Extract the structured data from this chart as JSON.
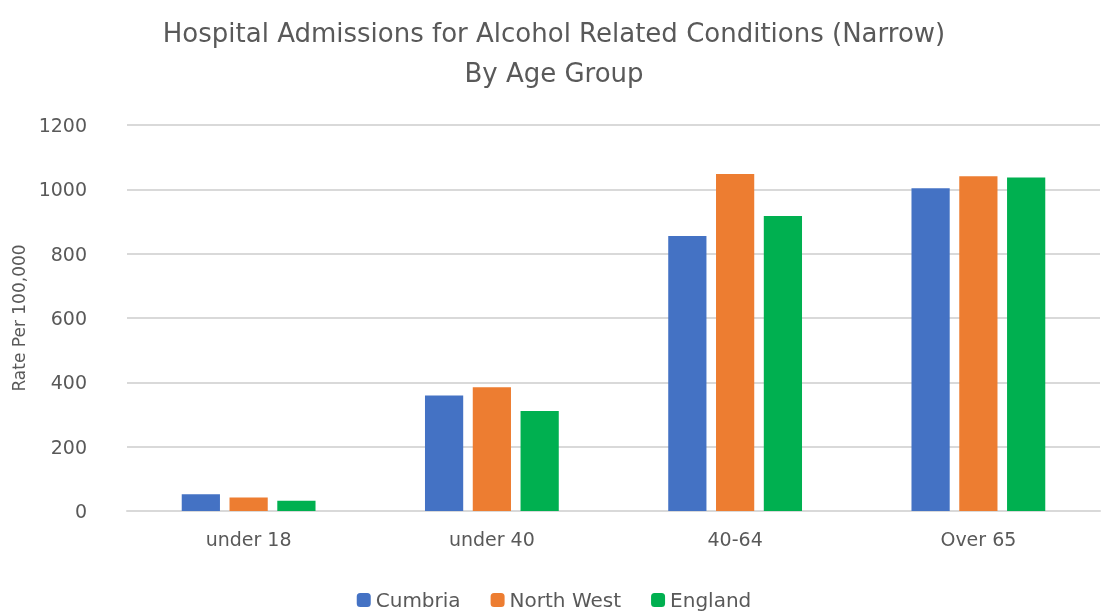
{
  "chart_data": {
    "type": "bar",
    "title": "Hospital Admissions for Alcohol Related Conditions (Narrow)\nBy Age Group",
    "ylabel": "Rate Per 100,000",
    "categories": [
      "under 18",
      "under 40",
      "40-64",
      "Over 65"
    ],
    "series": [
      {
        "name": "Cumbria",
        "color": "#4472c4",
        "values": [
          52,
          359,
          855,
          1003
        ]
      },
      {
        "name": "North West",
        "color": "#ed7d31",
        "values": [
          42,
          385,
          1048,
          1041
        ]
      },
      {
        "name": "England",
        "color": "#00b050",
        "values": [
          32,
          311,
          917,
          1037
        ]
      }
    ],
    "ylim": [
      0,
      1200
    ],
    "yticks": [
      0,
      200,
      400,
      600,
      800,
      1000,
      1200
    ],
    "grid": "y",
    "legend": "bottom"
  }
}
